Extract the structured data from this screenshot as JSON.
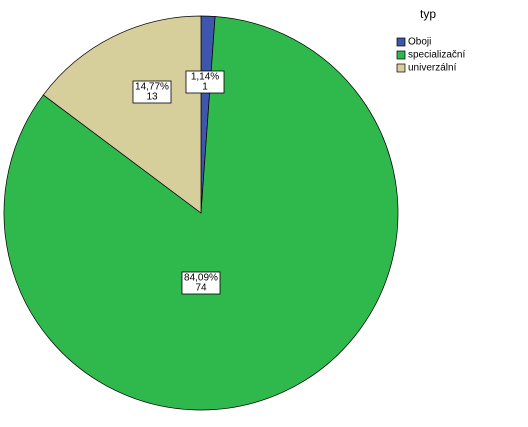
{
  "chart_data": {
    "type": "pie",
    "legend_title": "typ",
    "categories": [
      "Oboji",
      "specializační",
      "univerzální"
    ],
    "values": [
      1.14,
      84.09,
      14.77
    ],
    "value_labels": [
      "1,14%",
      "84,09%",
      "14,77%"
    ],
    "counts": [
      1,
      74,
      13
    ],
    "colors": [
      "#3e56ad",
      "#2fb84c",
      "#d6cf9c"
    ],
    "legend_position": "upper right"
  }
}
